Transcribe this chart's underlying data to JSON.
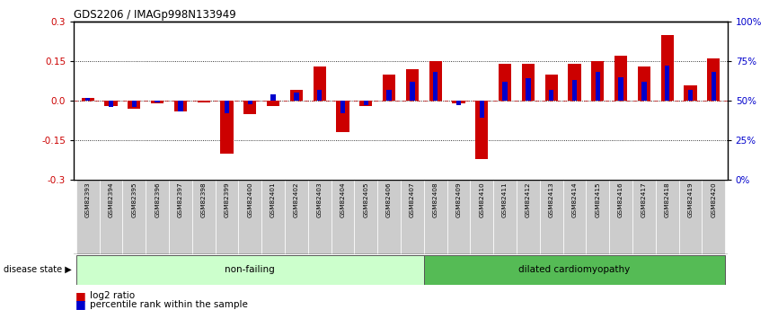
{
  "title": "GDS2206 / IMAGp998N133949",
  "samples": [
    "GSM82393",
    "GSM82394",
    "GSM82395",
    "GSM82396",
    "GSM82397",
    "GSM82398",
    "GSM82399",
    "GSM82400",
    "GSM82401",
    "GSM82402",
    "GSM82403",
    "GSM82404",
    "GSM82405",
    "GSM82406",
    "GSM82407",
    "GSM82408",
    "GSM82409",
    "GSM82410",
    "GSM82411",
    "GSM82412",
    "GSM82413",
    "GSM82414",
    "GSM82415",
    "GSM82416",
    "GSM82417",
    "GSM82418",
    "GSM82419",
    "GSM82420"
  ],
  "log2_ratio": [
    0.01,
    -0.02,
    -0.03,
    -0.01,
    -0.04,
    -0.005,
    -0.2,
    -0.05,
    -0.02,
    0.04,
    0.13,
    -0.12,
    -0.02,
    0.1,
    0.12,
    0.15,
    -0.01,
    -0.22,
    0.14,
    0.14,
    0.1,
    0.14,
    0.15,
    0.17,
    0.13,
    0.25,
    0.06,
    0.16
  ],
  "percentile_rank": [
    52,
    46,
    46,
    49,
    43,
    50,
    42,
    48,
    54,
    55,
    57,
    42,
    47,
    57,
    62,
    68,
    47,
    39,
    62,
    64,
    57,
    63,
    68,
    65,
    62,
    72,
    57,
    68
  ],
  "non_failing_count": 15,
  "non_failing_label": "non-failing",
  "dilated_label": "dilated cardiomyopathy",
  "disease_state_label": "disease state",
  "legend_log2": "log2 ratio",
  "legend_pct": "percentile rank within the sample",
  "ylim_left": [
    -0.3,
    0.3
  ],
  "yticks_left": [
    -0.3,
    -0.15,
    0.0,
    0.15,
    0.3
  ],
  "color_red": "#CC0000",
  "color_blue": "#0000CC",
  "color_nonfailing": "#CCFFCC",
  "color_dilated": "#55BB55",
  "color_gray_col": "#CCCCCC",
  "bar_width": 0.55
}
